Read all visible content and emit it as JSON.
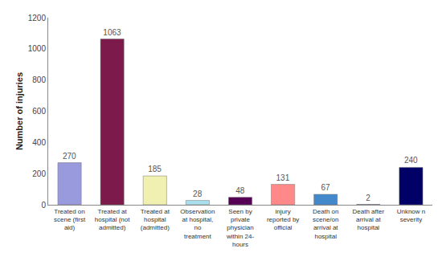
{
  "chart_data": {
    "type": "bar",
    "categories": [
      "Treated on\nscene (first\naid)",
      "Treated at\nhospital (not\nadmitted)",
      "Treated at\nhospital\n(admitted)",
      "Observation\nat hospital,\nno\ntreatment",
      "Seen by\nprivate\nphysician\nwithin 24-\nhours",
      "injury\nreported by\nofficial",
      "Death on\nscene/on\narrival at\nhospital",
      "Death after\narrival at\nhospital",
      "Unknow n\nseverity"
    ],
    "values": [
      270,
      1063,
      185,
      28,
      48,
      131,
      67,
      2,
      240
    ],
    "colors": [
      "#9999dd",
      "#7b1a4b",
      "#f0f0b0",
      "#aae0ee",
      "#550055",
      "#ff8888",
      "#4488cc",
      "#111166",
      "#000066"
    ],
    "ylabel": "Number of injuries",
    "ylim": [
      0,
      1200
    ],
    "yticks": [
      0,
      200,
      400,
      600,
      800,
      1000,
      1200
    ],
    "grid": false,
    "data_labels": true
  }
}
